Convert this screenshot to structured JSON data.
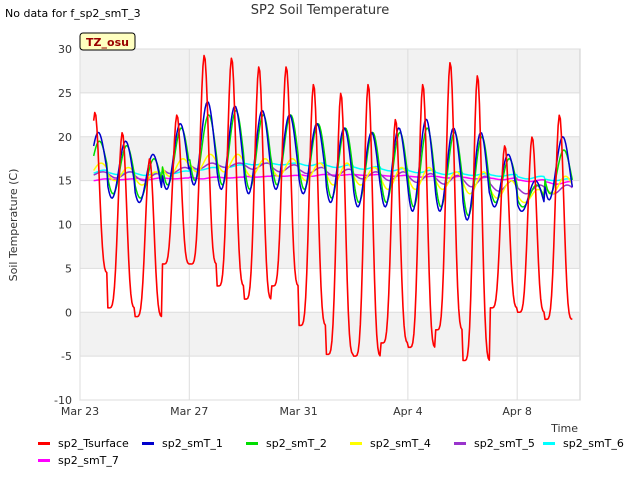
{
  "header": {
    "no_data_text": "No data for f_sp2_smT_3",
    "chart_title": "SP2 Soil Temperature",
    "site_badge": "TZ_osu"
  },
  "chart_data": {
    "type": "line",
    "title": "SP2 Soil Temperature",
    "xlabel": "Time",
    "ylabel": "Soil Temperature (C)",
    "ylim": [
      -10,
      30
    ],
    "yticks": [
      -10,
      -5,
      0,
      5,
      10,
      15,
      20,
      25,
      30
    ],
    "xlim": [
      "2023-03-23",
      "2023-04-10"
    ],
    "xticks": [
      {
        "label": "Mar 23",
        "day": 0
      },
      {
        "label": "Mar 27",
        "day": 4
      },
      {
        "label": "Mar 31",
        "day": 8
      },
      {
        "label": "Apr 4",
        "day": 12
      },
      {
        "label": "Apr 8",
        "day": 16
      }
    ],
    "background_bands": true,
    "grid": true,
    "legend_position": "bottom",
    "series": [
      {
        "name": "sp2_Tsurface",
        "color": "#ff0000",
        "daily_max": [
          22.8,
          20.5,
          17.5,
          22.5,
          29.3,
          29.0,
          28.0,
          28.0,
          26.0,
          25.0,
          26.0,
          22.0,
          26.0,
          28.5,
          27.0,
          19.0,
          20.0,
          22.5
        ],
        "daily_min": [
          4.5,
          0.5,
          -0.5,
          5.5,
          5.5,
          3.0,
          1.5,
          3.0,
          -1.5,
          -4.8,
          -5.0,
          -3.5,
          -4.0,
          -2.0,
          -5.5,
          0.5,
          0.0,
          -0.8
        ]
      },
      {
        "name": "sp2_smT_1",
        "color": "#0000cc",
        "daily_max": [
          20.5,
          19.5,
          18.0,
          21.5,
          24.0,
          23.5,
          23.0,
          22.5,
          21.5,
          21.0,
          20.5,
          21.0,
          22.0,
          21.0,
          20.5,
          18.0,
          15.0,
          20.0
        ],
        "daily_min": [
          14.5,
          13.0,
          12.5,
          14.0,
          14.5,
          14.0,
          13.5,
          14.0,
          13.5,
          12.5,
          12.0,
          12.0,
          11.5,
          11.5,
          10.5,
          12.0,
          11.5,
          12.8
        ]
      },
      {
        "name": "sp2_smT_2",
        "color": "#00dd00",
        "daily_max": [
          19.5,
          19.0,
          17.5,
          21.0,
          22.5,
          23.0,
          22.5,
          22.5,
          21.5,
          21.0,
          20.5,
          20.5,
          21.0,
          20.5,
          20.0,
          17.5,
          14.5,
          18.5
        ],
        "daily_min": [
          15.0,
          13.5,
          13.0,
          14.5,
          15.0,
          14.5,
          14.0,
          14.5,
          14.0,
          13.0,
          12.5,
          12.5,
          12.0,
          12.0,
          11.0,
          12.5,
          12.0,
          13.5
        ]
      },
      {
        "name": "sp2_smT_4",
        "color": "#ffff00",
        "daily_max": [
          17.0,
          16.5,
          16.0,
          17.5,
          18.0,
          18.0,
          17.5,
          17.5,
          17.0,
          17.0,
          16.5,
          16.5,
          16.5,
          16.0,
          16.0,
          15.0,
          14.0,
          15.5
        ],
        "daily_min": [
          15.5,
          15.0,
          14.5,
          15.5,
          16.0,
          16.0,
          15.5,
          15.5,
          15.0,
          14.5,
          14.5,
          14.0,
          14.0,
          14.0,
          13.5,
          13.0,
          12.5,
          13.5
        ]
      },
      {
        "name": "sp2_smT_5",
        "color": "#9933cc",
        "daily_max": [
          16.0,
          16.0,
          15.8,
          16.5,
          17.0,
          17.0,
          17.0,
          16.8,
          16.5,
          16.3,
          16.0,
          16.0,
          15.8,
          15.6,
          15.5,
          15.0,
          14.5,
          14.5
        ],
        "daily_min": [
          15.5,
          15.3,
          15.0,
          15.8,
          16.3,
          16.5,
          16.3,
          16.0,
          15.8,
          15.5,
          15.2,
          15.0,
          14.8,
          14.6,
          14.3,
          13.8,
          13.5,
          13.5
        ]
      },
      {
        "name": "sp2_smT_6",
        "color": "#00ffff",
        "daily_max": [
          16.2,
          16.0,
          15.9,
          16.1,
          16.5,
          16.8,
          17.0,
          17.0,
          17.0,
          16.8,
          16.6,
          16.4,
          16.2,
          16.0,
          15.8,
          15.7,
          15.5,
          15.2
        ],
        "daily_min": [
          15.8,
          15.7,
          15.6,
          15.8,
          16.2,
          16.5,
          16.8,
          16.8,
          16.7,
          16.5,
          16.3,
          16.1,
          15.9,
          15.7,
          15.6,
          15.5,
          15.2,
          15.0
        ]
      },
      {
        "name": "sp2_smT_7",
        "color": "#ff00ff",
        "daily_max": [
          15.2,
          15.2,
          15.3,
          15.3,
          15.4,
          15.4,
          15.5,
          15.6,
          15.7,
          15.7,
          15.7,
          15.6,
          15.5,
          15.5,
          15.4,
          15.3,
          15.1,
          14.9
        ],
        "daily_min": [
          15.0,
          15.1,
          15.1,
          15.2,
          15.2,
          15.3,
          15.4,
          15.5,
          15.5,
          15.6,
          15.6,
          15.5,
          15.4,
          15.3,
          15.2,
          15.1,
          14.9,
          14.6
        ]
      }
    ]
  }
}
